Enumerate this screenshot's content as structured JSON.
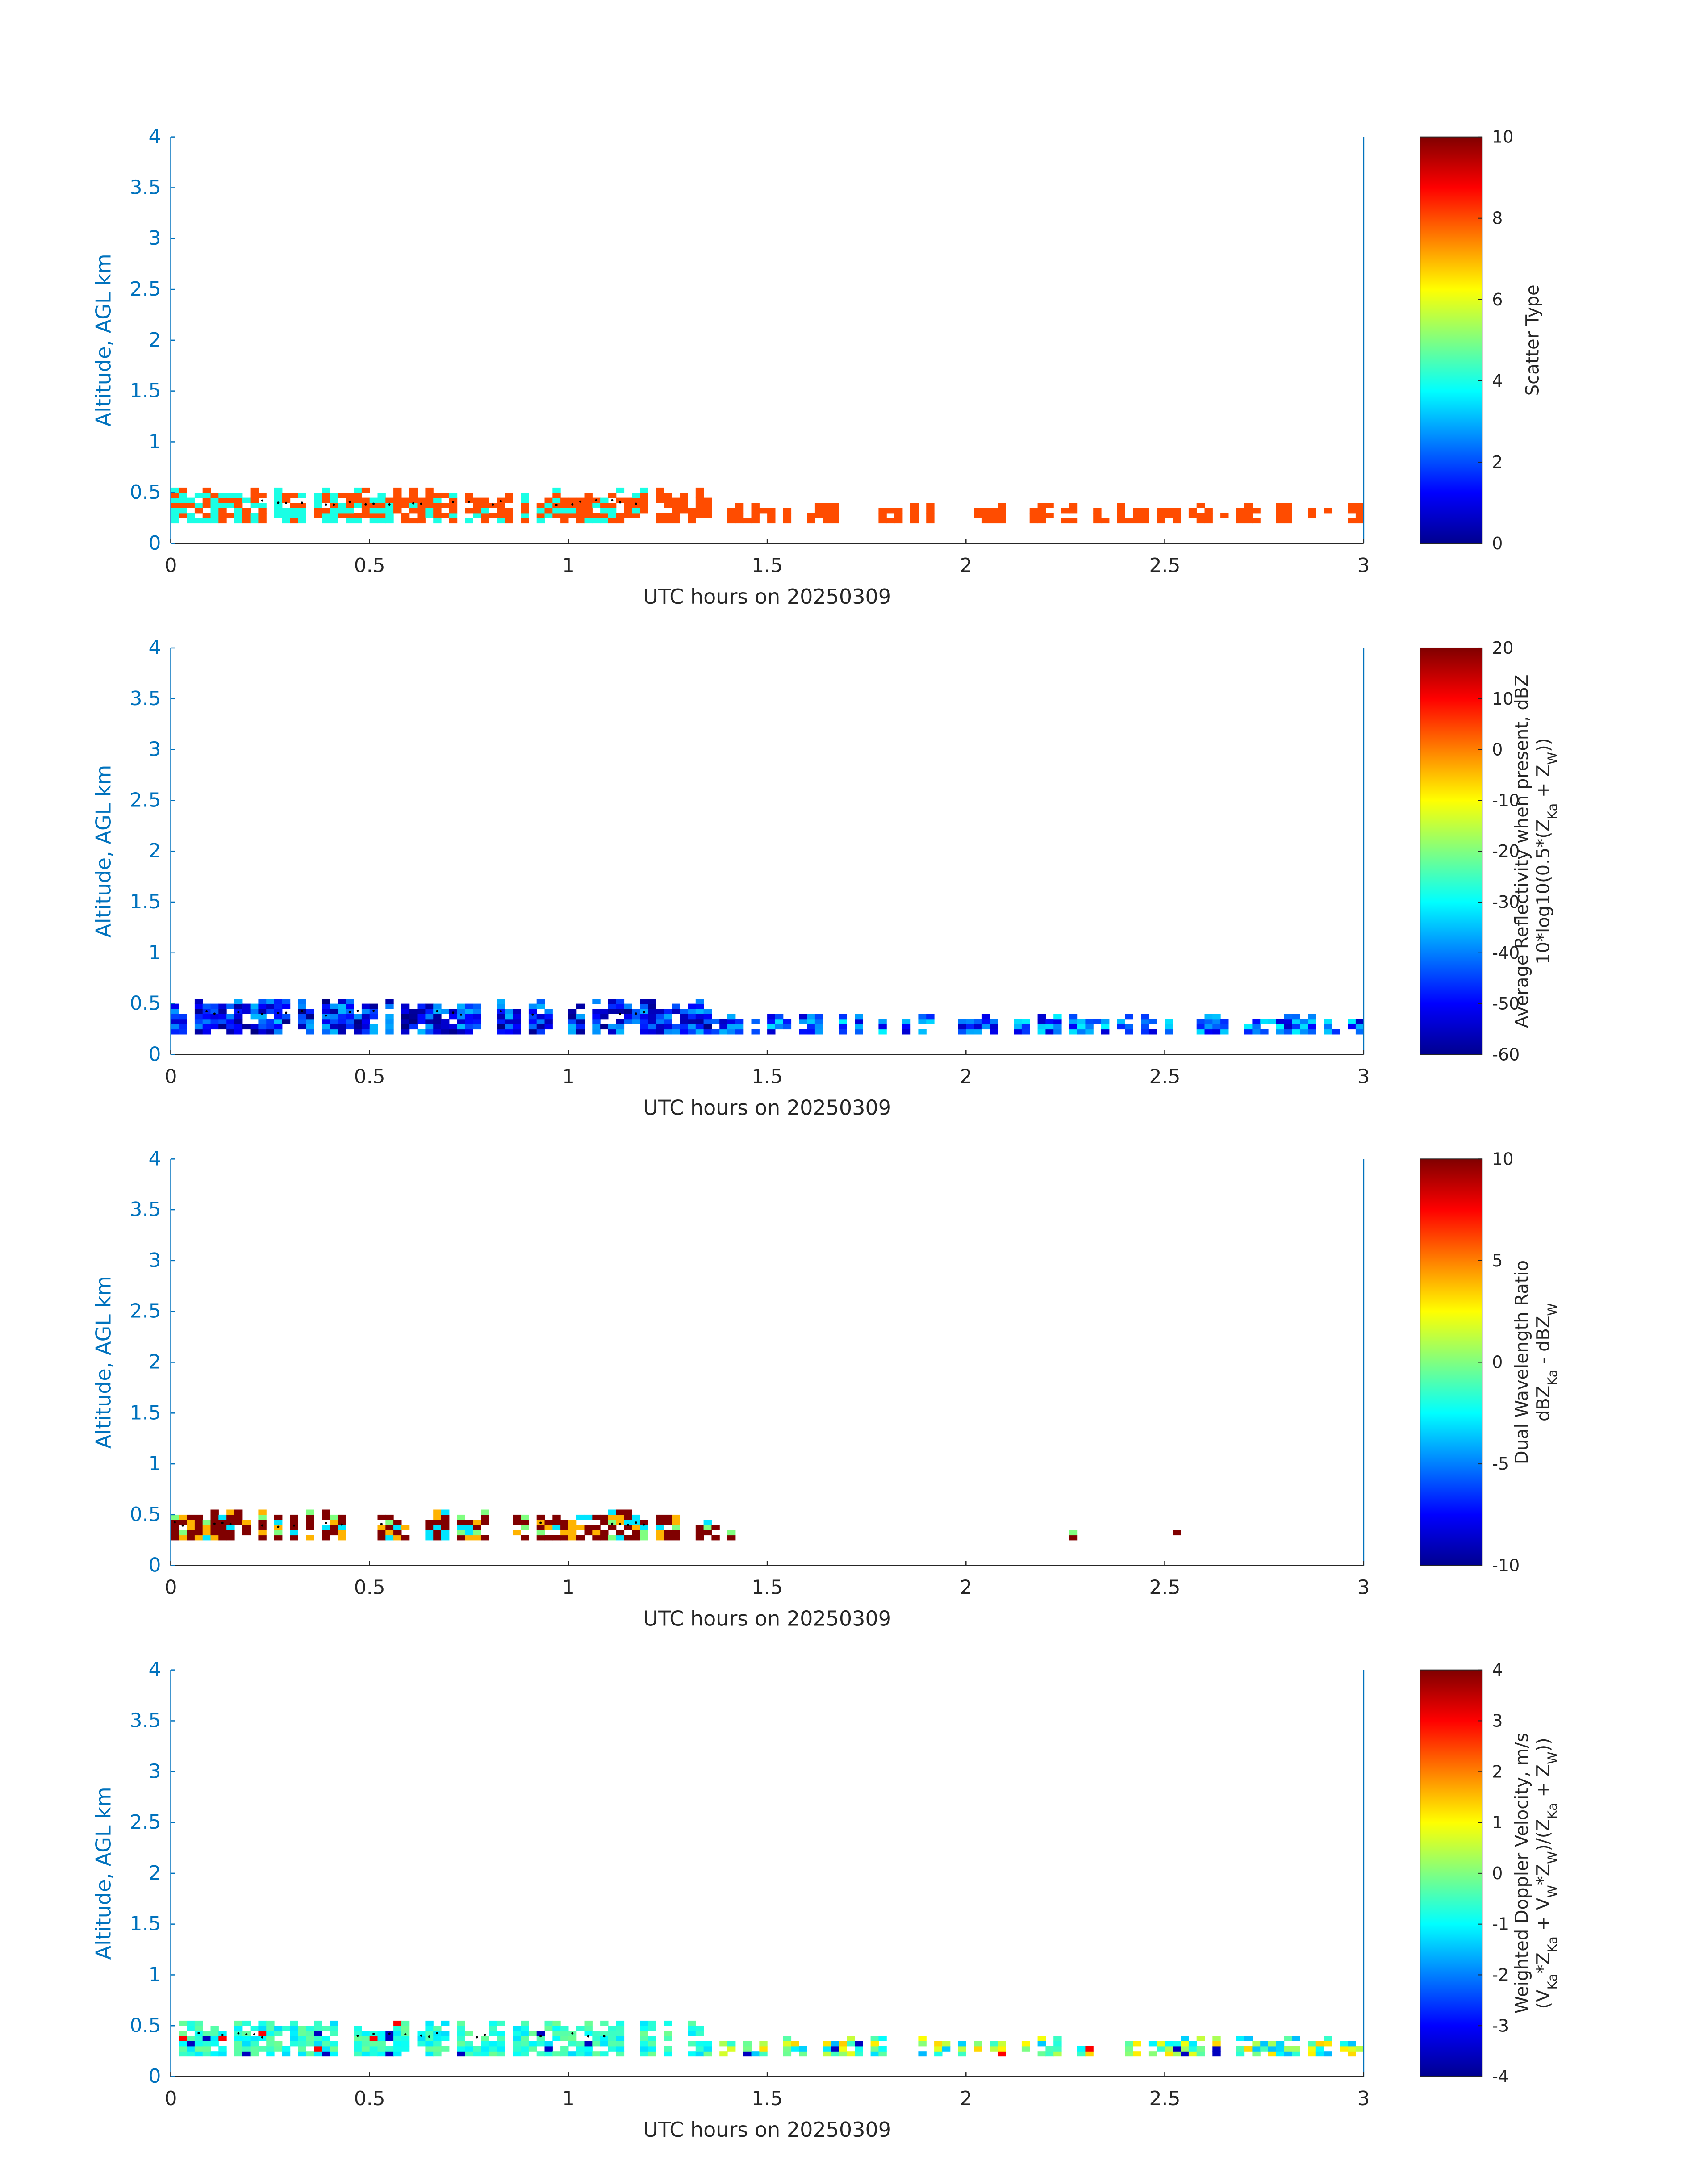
{
  "chart_data": [
    {
      "type": "heatmap",
      "xlabel": "UTC hours on 20250309",
      "ylabel": "Altitude, AGL km",
      "xlim": [
        0,
        3
      ],
      "ylim": [
        0,
        4
      ],
      "xticks": [
        "0",
        "0.5",
        "1",
        "1.5",
        "2",
        "2.5",
        "3"
      ],
      "yticks": [
        "0",
        "0.5",
        "1",
        "1.5",
        "2",
        "2.5",
        "3",
        "3.5",
        "4"
      ],
      "colorbar": {
        "label_lines": [
          "Scatter Type"
        ],
        "range": [
          0,
          10
        ],
        "ticks": [
          "0",
          "2",
          "4",
          "6",
          "8",
          "10"
        ]
      },
      "data_extent": {
        "x": [
          0,
          3
        ],
        "y": [
          0.2,
          0.6
        ]
      },
      "dominant_values": {
        "x_lt_0_55": [
          4,
          8
        ],
        "x_gt_0_55": [
          8
        ]
      }
    },
    {
      "type": "heatmap",
      "xlabel": "UTC hours on 20250309",
      "ylabel": "Altitude, AGL km",
      "xlim": [
        0,
        3
      ],
      "ylim": [
        0,
        4
      ],
      "xticks": [
        "0",
        "0.5",
        "1",
        "1.5",
        "2",
        "2.5",
        "3"
      ],
      "yticks": [
        "0",
        "0.5",
        "1",
        "1.5",
        "2",
        "2.5",
        "3",
        "3.5",
        "4"
      ],
      "colorbar": {
        "label_lines": [
          "Average Reflectivity when present, dBZ",
          "10*log10(0.5*(Z_Ka + Z_W))"
        ],
        "range": [
          -60,
          20
        ],
        "ticks": [
          "-60",
          "-50",
          "-40",
          "-30",
          "-20",
          "-10",
          "0",
          "10",
          "20"
        ]
      },
      "data_extent": {
        "x": [
          0,
          3
        ],
        "y": [
          0.2,
          0.6
        ]
      },
      "value_range": [
        -60,
        -35
      ]
    },
    {
      "type": "heatmap",
      "xlabel": "UTC hours on 20250309",
      "ylabel": "Altitude, AGL km",
      "xlim": [
        0,
        3
      ],
      "ylim": [
        0,
        4
      ],
      "xticks": [
        "0",
        "0.5",
        "1",
        "1.5",
        "2",
        "2.5",
        "3"
      ],
      "yticks": [
        "0",
        "0.5",
        "1",
        "1.5",
        "2",
        "2.5",
        "3",
        "3.5",
        "4"
      ],
      "colorbar": {
        "label_lines": [
          "Dual Wavelength Ratio",
          "dBZ_Ka - dBZ_W"
        ],
        "range": [
          -10,
          10
        ],
        "ticks": [
          "-10",
          "-5",
          "0",
          "5",
          "10"
        ]
      },
      "data_extent": {
        "x": [
          0,
          1.5
        ],
        "y": [
          0.25,
          0.55
        ]
      },
      "isolated_points_x": [
        2.27,
        2.53
      ],
      "value_range": [
        0,
        10
      ]
    },
    {
      "type": "heatmap",
      "xlabel": "UTC hours on 20250309",
      "ylabel": "Altitude, AGL km",
      "xlim": [
        0,
        3
      ],
      "ylim": [
        0,
        4
      ],
      "xticks": [
        "0",
        "0.5",
        "1",
        "1.5",
        "2",
        "2.5",
        "3"
      ],
      "yticks": [
        "0",
        "0.5",
        "1",
        "1.5",
        "2",
        "2.5",
        "3",
        "3.5",
        "4"
      ],
      "colorbar": {
        "label_lines": [
          "Weighted Doppler Velocity, m/s",
          "(V_Ka*Z_Ka + V_W*Z_W)/(Z_Ka + Z_W))"
        ],
        "range": [
          -4,
          4
        ],
        "ticks": [
          "-4",
          "-3",
          "-2",
          "-1",
          "0",
          "1",
          "2",
          "3",
          "4"
        ]
      },
      "data_extent": {
        "x": [
          0,
          3
        ],
        "y": [
          0.2,
          0.6
        ]
      },
      "value_range": [
        -3,
        3
      ]
    }
  ]
}
